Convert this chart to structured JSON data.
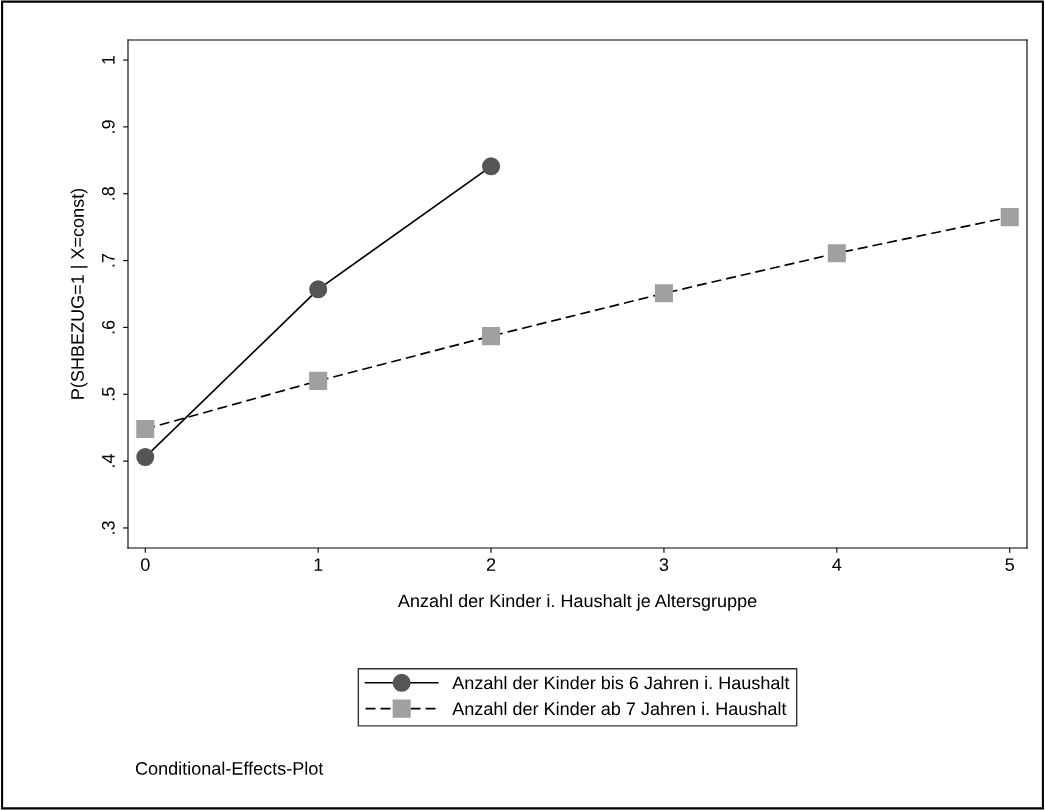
{
  "chart_data": {
    "type": "line",
    "xlabel": "Anzahl der Kinder i. Haushalt je Altersgruppe",
    "ylabel": "P(SHBEZUG=1 | X=const)",
    "series": [
      {
        "name": "Anzahl der Kinder bis 6 Jahren i. Haushalt",
        "color": "#555555",
        "marker": "circle",
        "line_style": "solid",
        "x": [
          0,
          1,
          2
        ],
        "values": [
          0.406,
          0.657,
          0.841
        ]
      },
      {
        "name": "Anzahl der Kinder ab 7 Jahren i. Haushalt",
        "color": "#a0a0a0",
        "marker": "square",
        "line_style": "dashed",
        "x": [
          0,
          1,
          2,
          3,
          4,
          5
        ],
        "values": [
          0.448,
          0.52,
          0.587,
          0.651,
          0.711,
          0.765
        ]
      }
    ],
    "xlim": [
      -0.1,
      5.1
    ],
    "xticks": [
      0,
      1,
      2,
      3,
      4,
      5
    ],
    "ylim": [
      0.27,
      1.03
    ],
    "yticks": [
      {
        "value": 0.3,
        "label": ".3"
      },
      {
        "value": 0.4,
        "label": ".4"
      },
      {
        "value": 0.5,
        "label": ".5"
      },
      {
        "value": 0.6,
        "label": ".6"
      },
      {
        "value": 0.7,
        "label": ".7"
      },
      {
        "value": 0.8,
        "label": ".8"
      },
      {
        "value": 0.9,
        "label": ".9"
      },
      1
    ],
    "grid": false,
    "legend": "bottom",
    "annotations": [
      "Conditional-Effects-Plot"
    ]
  }
}
